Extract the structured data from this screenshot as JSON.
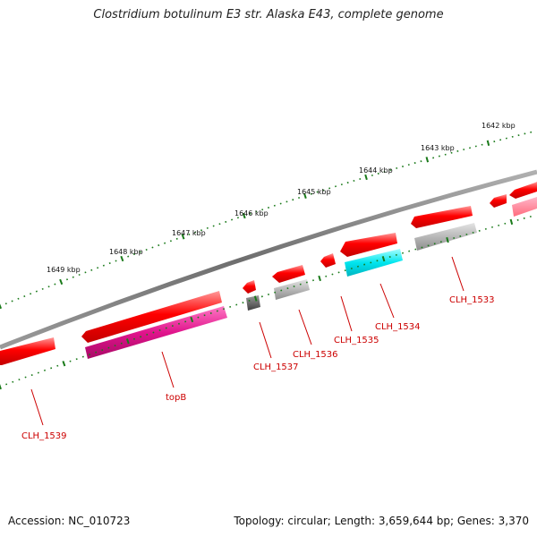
{
  "title": "Clostridium botulinum E3 str. Alaska E43, complete genome",
  "footer": {
    "accession": "Accession: NC_010723",
    "topology": "Topology: circular; Length: 3,659,644 bp; Genes: 3,370"
  },
  "ruler_labels": [
    "1642 kbp",
    "1643 kbp",
    "1644 kbp",
    "1645 kbp",
    "1646 kbp",
    "1647 kbp",
    "1648 kbp",
    "1649 kbp"
  ],
  "gene_labels": [
    "CLH_1533",
    "CLH_1534",
    "CLH_1535",
    "CLH_1536",
    "CLH_1537",
    "topB",
    "CLH_1539"
  ],
  "colors": {
    "cds": "#ff0000",
    "rna_magenta": "#e0148c",
    "rna_cyan": "#00e5ee",
    "rna_gray": "#b0b0b0",
    "rna_dark": "#606060",
    "tick": "#1a7a1a",
    "backbone": "#808080"
  }
}
